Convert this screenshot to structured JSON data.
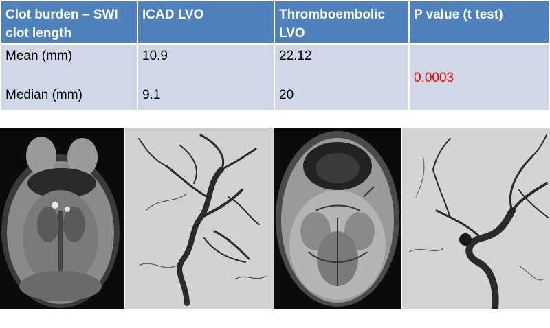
{
  "table": {
    "headers": [
      "Clot burden – SWI clot length",
      "ICAD LVO",
      "Thromboembolic LVO",
      "P value (t test)"
    ],
    "rows": [
      {
        "label": "Mean (mm)",
        "icad": "10.9",
        "thrombo": "22.12"
      },
      {
        "label": "Median (mm)",
        "icad": "9.1",
        "thrombo": "20"
      }
    ],
    "p_value": "0.0003",
    "p_value_color": "#ff0000"
  },
  "images": [
    {
      "icon": "swi-mri-axial-scan"
    },
    {
      "icon": "angiogram-lateral"
    },
    {
      "icon": "swi-mri-axial-scan"
    },
    {
      "icon": "angiogram-lateral"
    }
  ],
  "colors": {
    "header_bg": "#4f81bd",
    "body_bg": "#d0d8e8"
  }
}
